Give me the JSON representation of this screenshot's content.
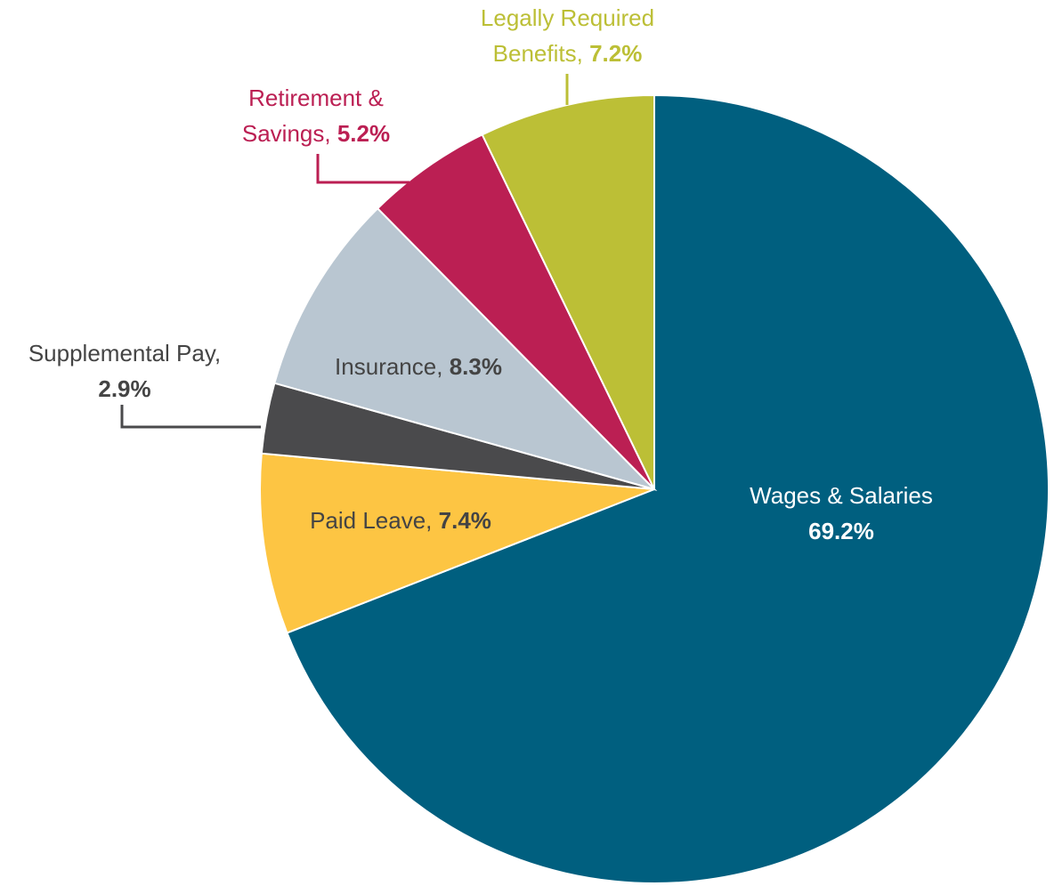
{
  "chart_data": {
    "type": "pie",
    "categories": [
      "Wages & Salaries",
      "Paid Leave,",
      "Supplemental Pay,",
      "Insurance,",
      "Retirement & Savings,",
      "Legally Required Benefits,"
    ],
    "values": [
      69.2,
      7.4,
      2.9,
      8.3,
      5.2,
      7.2
    ],
    "value_labels": [
      "69.2%",
      "7.4%",
      "2.9%",
      "8.3%",
      "5.2%",
      "7.2%"
    ],
    "colors": [
      "#005f7f",
      "#fdc543",
      "#4a4a4c",
      "#b9c6d1",
      "#bb1f53",
      "#bcbf36"
    ]
  }
}
